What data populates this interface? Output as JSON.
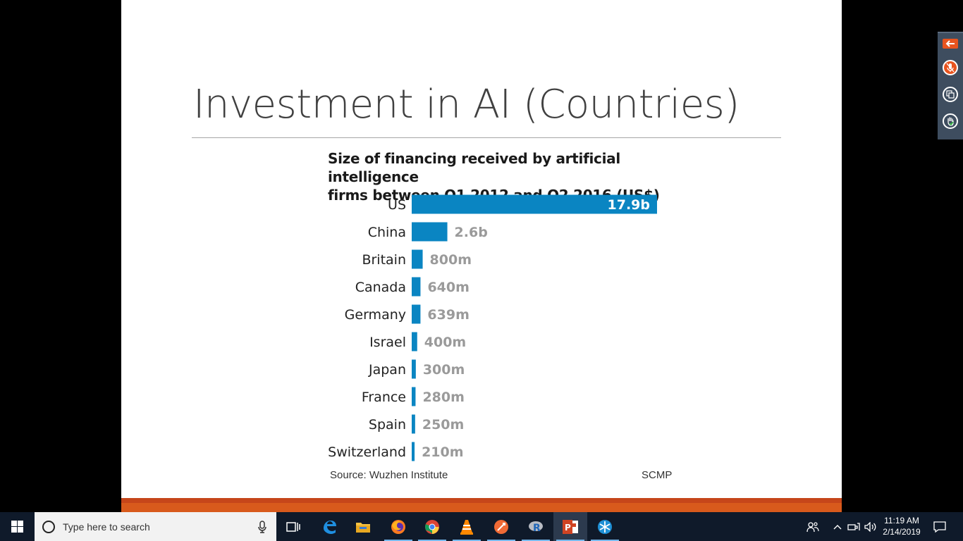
{
  "slide": {
    "title": "Investment in AI (Countries)",
    "chart_heading_line1": "Size of financing received by artificial intelligence",
    "chart_heading_line2": "firms between Q1 2012 and Q2 2016 (US$)",
    "source": "Source: Wuzhen Institute",
    "credit": "SCMP"
  },
  "chart_data": {
    "type": "bar",
    "orientation": "horizontal",
    "categories": [
      "US",
      "China",
      "Britain",
      "Canada",
      "Germany",
      "Israel",
      "Japan",
      "France",
      "Spain",
      "Switzerland"
    ],
    "values": [
      17900,
      2600,
      800,
      640,
      639,
      400,
      300,
      280,
      250,
      210
    ],
    "value_units": "US$ million",
    "data_labels": [
      "17.9b",
      "2.6b",
      "800m",
      "640m",
      "639m",
      "400m",
      "300m",
      "280m",
      "250m",
      "210m"
    ],
    "bar_color": "#0a85c2",
    "label_color_outside": "#9a9a9a",
    "label_color_inside": "#ffffff"
  },
  "taskbar": {
    "search_placeholder": "Type here to search",
    "apps": [
      "task-view",
      "edge",
      "file-explorer",
      "firefox",
      "chrome",
      "vlc",
      "app-orange",
      "r",
      "powerpoint",
      "app-snowflake"
    ],
    "clock_time": "11:19 AM",
    "clock_date": "2/14/2019"
  },
  "colors": {
    "slide_band": "#d85a1c",
    "taskbar": "#0f1a2a",
    "side_toolbar": "#3e4d5f",
    "side_accent": "#e8541f"
  }
}
